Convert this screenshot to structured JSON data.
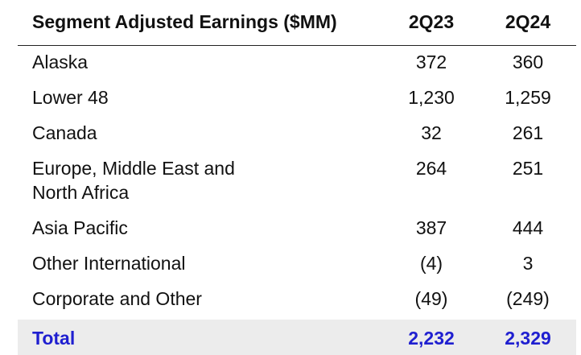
{
  "table": {
    "header": {
      "label": "Segment Adjusted Earnings ($MM)",
      "col1": "2Q23",
      "col2": "2Q24"
    },
    "rows": [
      {
        "label": "Alaska",
        "col1": "372",
        "col2": "360"
      },
      {
        "label": "Lower 48",
        "col1": "1,230",
        "col2": "1,259"
      },
      {
        "label": "Canada",
        "col1": "32",
        "col2": "261"
      },
      {
        "label": "Europe, Middle East and North Africa",
        "col1": "264",
        "col2": "251"
      },
      {
        "label": "Asia Pacific",
        "col1": "387",
        "col2": "444"
      },
      {
        "label": "Other International",
        "col1": "(4)",
        "col2": "3"
      },
      {
        "label": "Corporate and Other",
        "col1": "(49)",
        "col2": "(249)"
      }
    ],
    "total": {
      "label": "Total",
      "col1": "2,232",
      "col2": "2,329"
    }
  },
  "colors": {
    "total_text": "#1f1fd0",
    "total_background": "#ececec",
    "header_rule": "#222222"
  }
}
